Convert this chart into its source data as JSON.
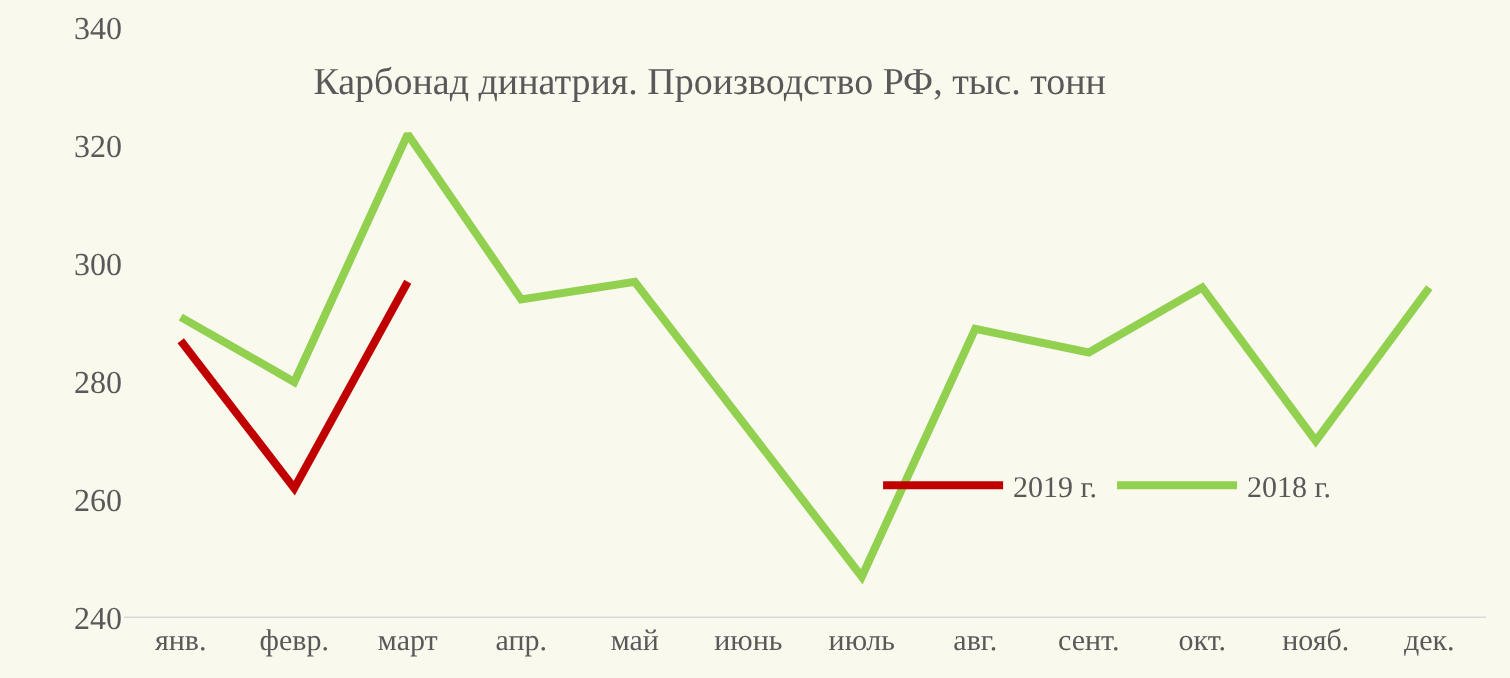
{
  "chart_data": {
    "type": "line",
    "title": "Карбонад динатрия. Производство РФ, тыс. тонн",
    "categories": [
      "янв.",
      "февр.",
      "март",
      "апр.",
      "май",
      "июнь",
      "июль",
      "авг.",
      "сент.",
      "окт.",
      "нояб.",
      "дек."
    ],
    "series": [
      {
        "name": "2019 г.",
        "color": "#c00000",
        "values": [
          287,
          262,
          297,
          null,
          null,
          null,
          null,
          null,
          null,
          null,
          null,
          null
        ]
      },
      {
        "name": "2018 г.",
        "color": "#92d050",
        "values": [
          291,
          280,
          322,
          294,
          297,
          272,
          247,
          289,
          285,
          296,
          270,
          296
        ]
      }
    ],
    "ylim": [
      240,
      340
    ],
    "yticks": [
      240,
      260,
      280,
      300,
      320,
      340
    ],
    "grid": false,
    "legend": "bottom right",
    "marker": "none",
    "line_style": "solid"
  }
}
